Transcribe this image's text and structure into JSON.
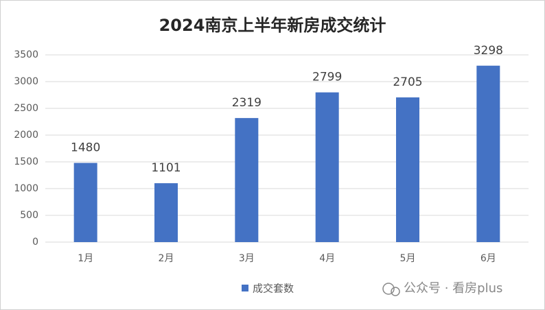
{
  "chart_data": {
    "type": "bar",
    "title": "2024南京上半年新房成交统计",
    "categories": [
      "1月",
      "2月",
      "3月",
      "4月",
      "5月",
      "6月"
    ],
    "series": [
      {
        "name": "成交套数",
        "color": "#4472c4",
        "values": [
          1480,
          1101,
          2319,
          2799,
          2705,
          3298
        ]
      }
    ],
    "ylim": [
      0,
      3500
    ],
    "yticks": [
      0,
      500,
      1000,
      1500,
      2000,
      2500,
      3000,
      3500
    ],
    "grid": true,
    "legend": "bottom",
    "data_labels": true,
    "watermark": "公众号 · 看房plus"
  }
}
